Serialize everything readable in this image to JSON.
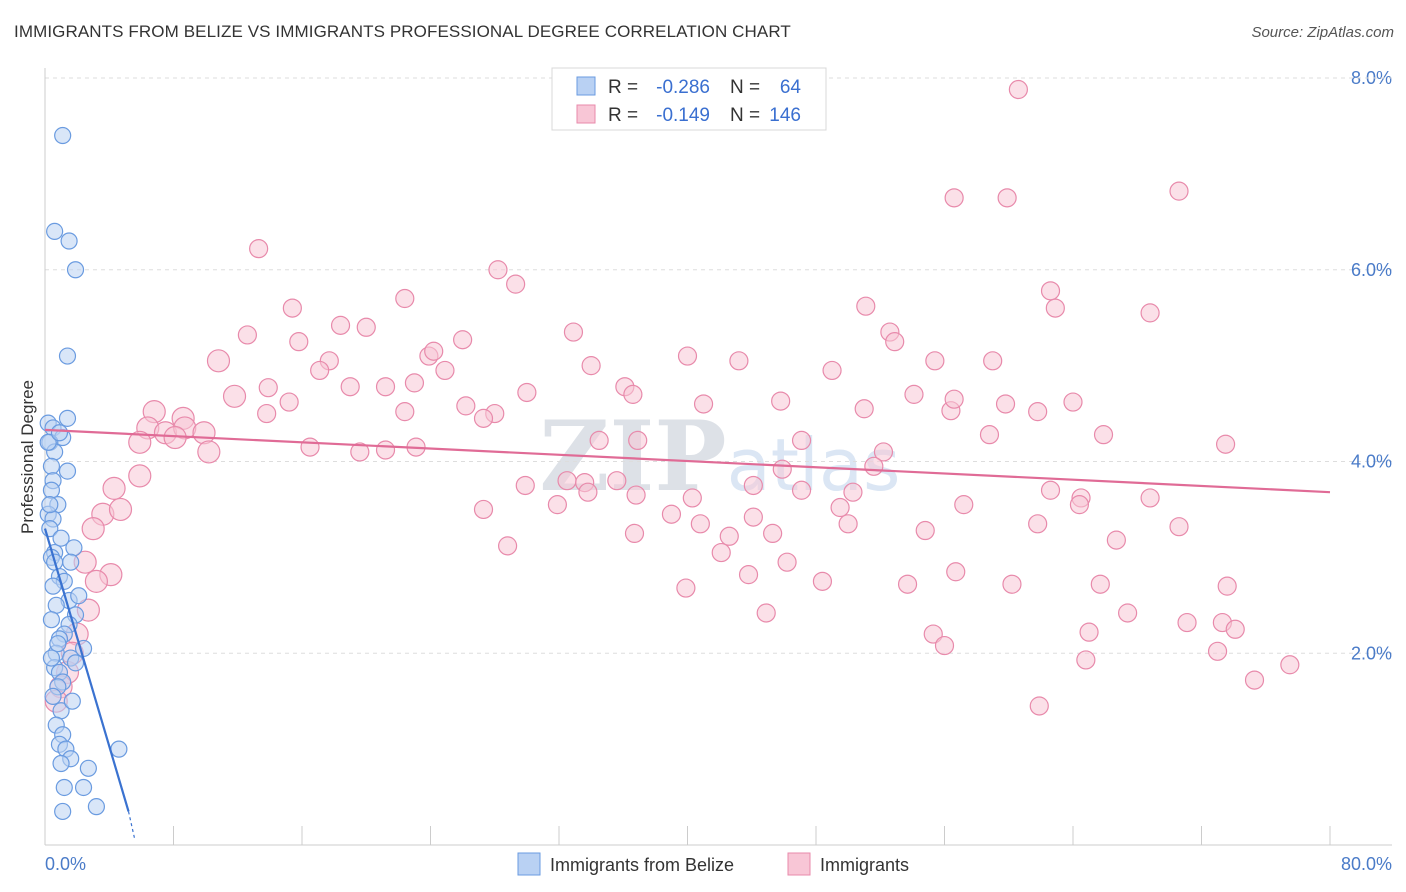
{
  "chart_data": {
    "type": "scatter",
    "title": "IMMIGRANTS FROM BELIZE VS IMMIGRANTS PROFESSIONAL DEGREE CORRELATION CHART",
    "source": "Source: ZipAtlas.com",
    "xlabel": "",
    "ylabel": "Professional Degree",
    "xlim": [
      0,
      80
    ],
    "ylim": [
      0,
      8.0
    ],
    "x_tick_labels": [
      "0.0%",
      "80.0%"
    ],
    "y_tick_labels": [
      "2.0%",
      "4.0%",
      "6.0%",
      "8.0%"
    ],
    "y_ticks": [
      2.0,
      4.0,
      6.0,
      8.0
    ],
    "watermark": "ZIPatlas",
    "legend": {
      "r_label": "R =",
      "n_label": "N =",
      "entries": [
        {
          "r": "-0.286",
          "n": "64"
        },
        {
          "r": "-0.149",
          "n": "146"
        }
      ]
    },
    "series": [
      {
        "name": "Immigrants from Belize",
        "color": "#6a9be0",
        "fill": "#b9d1f3",
        "line_color": "#3a72d0",
        "trend": {
          "x0": 0.0,
          "y0": 3.3,
          "x1": 5.2,
          "y1": 0.35,
          "dash_to_x": 5.6,
          "dash_to_y": 0.05
        },
        "points": [
          [
            1.1,
            7.4
          ],
          [
            0.6,
            6.4
          ],
          [
            1.5,
            6.3
          ],
          [
            1.9,
            6.0
          ],
          [
            1.4,
            5.1
          ],
          [
            1.4,
            4.45
          ],
          [
            0.2,
            4.4
          ],
          [
            0.5,
            4.35
          ],
          [
            1.1,
            4.25
          ],
          [
            0.3,
            4.2
          ],
          [
            0.6,
            4.1
          ],
          [
            0.4,
            3.95
          ],
          [
            0.5,
            3.8
          ],
          [
            0.4,
            3.7
          ],
          [
            0.8,
            3.55
          ],
          [
            0.2,
            3.45
          ],
          [
            0.5,
            3.4
          ],
          [
            0.3,
            3.3
          ],
          [
            1.8,
            3.1
          ],
          [
            0.6,
            3.05
          ],
          [
            0.4,
            3.0
          ],
          [
            0.6,
            2.95
          ],
          [
            1.6,
            2.95
          ],
          [
            0.9,
            2.8
          ],
          [
            1.2,
            2.75
          ],
          [
            0.5,
            2.7
          ],
          [
            1.5,
            2.55
          ],
          [
            0.7,
            2.5
          ],
          [
            1.9,
            2.4
          ],
          [
            0.4,
            2.35
          ],
          [
            1.5,
            2.3
          ],
          [
            1.2,
            2.2
          ],
          [
            0.9,
            2.15
          ],
          [
            2.4,
            2.05
          ],
          [
            0.7,
            2.0
          ],
          [
            1.6,
            1.95
          ],
          [
            1.9,
            1.9
          ],
          [
            0.6,
            1.85
          ],
          [
            0.9,
            1.8
          ],
          [
            1.1,
            1.7
          ],
          [
            0.8,
            1.65
          ],
          [
            0.5,
            1.55
          ],
          [
            1.0,
            1.4
          ],
          [
            0.7,
            1.25
          ],
          [
            1.1,
            1.15
          ],
          [
            0.9,
            1.05
          ],
          [
            1.3,
            1.0
          ],
          [
            4.6,
            1.0
          ],
          [
            1.6,
            0.9
          ],
          [
            1.0,
            0.85
          ],
          [
            2.7,
            0.8
          ],
          [
            1.2,
            0.6
          ],
          [
            2.4,
            0.6
          ],
          [
            3.2,
            0.4
          ],
          [
            1.1,
            0.35
          ],
          [
            0.3,
            3.55
          ],
          [
            0.2,
            4.2
          ],
          [
            1.4,
            3.9
          ],
          [
            0.9,
            4.3
          ],
          [
            2.1,
            2.6
          ],
          [
            0.8,
            2.1
          ],
          [
            1.7,
            1.5
          ],
          [
            0.4,
            1.95
          ],
          [
            1.0,
            3.2
          ]
        ]
      },
      {
        "name": "Immigrants",
        "color": "#e88aab",
        "fill": "#f8c6d6",
        "line_color": "#e06b96",
        "trend": {
          "x0": 0.0,
          "y0": 4.33,
          "x1": 80.0,
          "y1": 3.68
        },
        "points": [
          [
            60.6,
            7.88
          ],
          [
            56.6,
            6.75
          ],
          [
            59.9,
            6.75
          ],
          [
            70.6,
            6.82
          ],
          [
            13.3,
            6.22
          ],
          [
            28.2,
            6.0
          ],
          [
            29.3,
            5.85
          ],
          [
            22.4,
            5.7
          ],
          [
            15.4,
            5.6
          ],
          [
            62.6,
            5.78
          ],
          [
            62.9,
            5.6
          ],
          [
            68.8,
            5.55
          ],
          [
            51.1,
            5.62
          ],
          [
            18.4,
            5.42
          ],
          [
            20.0,
            5.4
          ],
          [
            12.6,
            5.32
          ],
          [
            32.9,
            5.35
          ],
          [
            52.6,
            5.35
          ],
          [
            15.8,
            5.25
          ],
          [
            26.0,
            5.27
          ],
          [
            52.9,
            5.25
          ],
          [
            10.8,
            5.05
          ],
          [
            17.7,
            5.05
          ],
          [
            23.9,
            5.1
          ],
          [
            24.2,
            5.15
          ],
          [
            40.0,
            5.1
          ],
          [
            43.2,
            5.05
          ],
          [
            34.0,
            5.0
          ],
          [
            55.4,
            5.05
          ],
          [
            59.0,
            5.05
          ],
          [
            17.1,
            4.95
          ],
          [
            24.9,
            4.95
          ],
          [
            30.0,
            4.72
          ],
          [
            36.1,
            4.78
          ],
          [
            36.6,
            4.7
          ],
          [
            13.9,
            4.77
          ],
          [
            11.8,
            4.68
          ],
          [
            19.0,
            4.78
          ],
          [
            21.2,
            4.78
          ],
          [
            23.0,
            4.82
          ],
          [
            49.0,
            4.95
          ],
          [
            54.1,
            4.7
          ],
          [
            56.4,
            4.53
          ],
          [
            56.6,
            4.65
          ],
          [
            45.8,
            4.63
          ],
          [
            15.2,
            4.62
          ],
          [
            6.8,
            4.52
          ],
          [
            8.6,
            4.45
          ],
          [
            13.8,
            4.5
          ],
          [
            22.4,
            4.52
          ],
          [
            26.2,
            4.58
          ],
          [
            28.0,
            4.5
          ],
          [
            27.3,
            4.45
          ],
          [
            41.0,
            4.6
          ],
          [
            51.0,
            4.55
          ],
          [
            59.8,
            4.6
          ],
          [
            61.8,
            4.52
          ],
          [
            64.0,
            4.62
          ],
          [
            6.4,
            4.35
          ],
          [
            7.5,
            4.3
          ],
          [
            8.7,
            4.35
          ],
          [
            9.9,
            4.3
          ],
          [
            5.9,
            4.2
          ],
          [
            8.1,
            4.25
          ],
          [
            10.2,
            4.1
          ],
          [
            16.5,
            4.15
          ],
          [
            19.6,
            4.1
          ],
          [
            21.2,
            4.12
          ],
          [
            23.1,
            4.15
          ],
          [
            34.5,
            4.22
          ],
          [
            36.9,
            4.22
          ],
          [
            47.1,
            4.22
          ],
          [
            52.2,
            4.1
          ],
          [
            58.8,
            4.28
          ],
          [
            65.9,
            4.28
          ],
          [
            73.5,
            4.18
          ],
          [
            5.9,
            3.85
          ],
          [
            4.3,
            3.72
          ],
          [
            3.6,
            3.45
          ],
          [
            4.7,
            3.5
          ],
          [
            32.5,
            3.8
          ],
          [
            29.9,
            3.75
          ],
          [
            33.6,
            3.78
          ],
          [
            35.6,
            3.8
          ],
          [
            36.8,
            3.65
          ],
          [
            31.9,
            3.55
          ],
          [
            27.3,
            3.5
          ],
          [
            33.8,
            3.68
          ],
          [
            40.3,
            3.62
          ],
          [
            44.1,
            3.75
          ],
          [
            45.9,
            3.92
          ],
          [
            51.6,
            3.95
          ],
          [
            49.5,
            3.52
          ],
          [
            47.1,
            3.7
          ],
          [
            50.3,
            3.68
          ],
          [
            62.6,
            3.7
          ],
          [
            64.5,
            3.62
          ],
          [
            68.8,
            3.62
          ],
          [
            64.4,
            3.55
          ],
          [
            57.2,
            3.55
          ],
          [
            39.0,
            3.45
          ],
          [
            40.8,
            3.35
          ],
          [
            44.1,
            3.42
          ],
          [
            50.0,
            3.35
          ],
          [
            61.8,
            3.35
          ],
          [
            54.8,
            3.28
          ],
          [
            45.3,
            3.25
          ],
          [
            42.6,
            3.22
          ],
          [
            36.7,
            3.25
          ],
          [
            66.7,
            3.18
          ],
          [
            70.6,
            3.32
          ],
          [
            3.0,
            3.3
          ],
          [
            2.5,
            2.95
          ],
          [
            4.1,
            2.82
          ],
          [
            3.2,
            2.75
          ],
          [
            28.8,
            3.12
          ],
          [
            42.1,
            3.05
          ],
          [
            46.2,
            2.95
          ],
          [
            43.8,
            2.82
          ],
          [
            48.4,
            2.75
          ],
          [
            53.7,
            2.72
          ],
          [
            60.2,
            2.72
          ],
          [
            65.7,
            2.72
          ],
          [
            73.6,
            2.7
          ],
          [
            39.9,
            2.68
          ],
          [
            56.7,
            2.85
          ],
          [
            2.7,
            2.45
          ],
          [
            2.0,
            2.2
          ],
          [
            1.7,
            2.0
          ],
          [
            1.4,
            1.8
          ],
          [
            1.0,
            1.65
          ],
          [
            0.7,
            1.5
          ],
          [
            44.9,
            2.42
          ],
          [
            65.0,
            2.22
          ],
          [
            67.4,
            2.42
          ],
          [
            71.1,
            2.32
          ],
          [
            73.3,
            2.32
          ],
          [
            74.1,
            2.25
          ],
          [
            55.3,
            2.2
          ],
          [
            56.0,
            2.08
          ],
          [
            61.9,
            1.45
          ],
          [
            64.8,
            1.93
          ],
          [
            73.0,
            2.02
          ],
          [
            75.3,
            1.72
          ],
          [
            77.5,
            1.88
          ]
        ]
      }
    ]
  },
  "bottom_legend": {
    "items": [
      "Immigrants from Belize",
      "Immigrants"
    ]
  }
}
